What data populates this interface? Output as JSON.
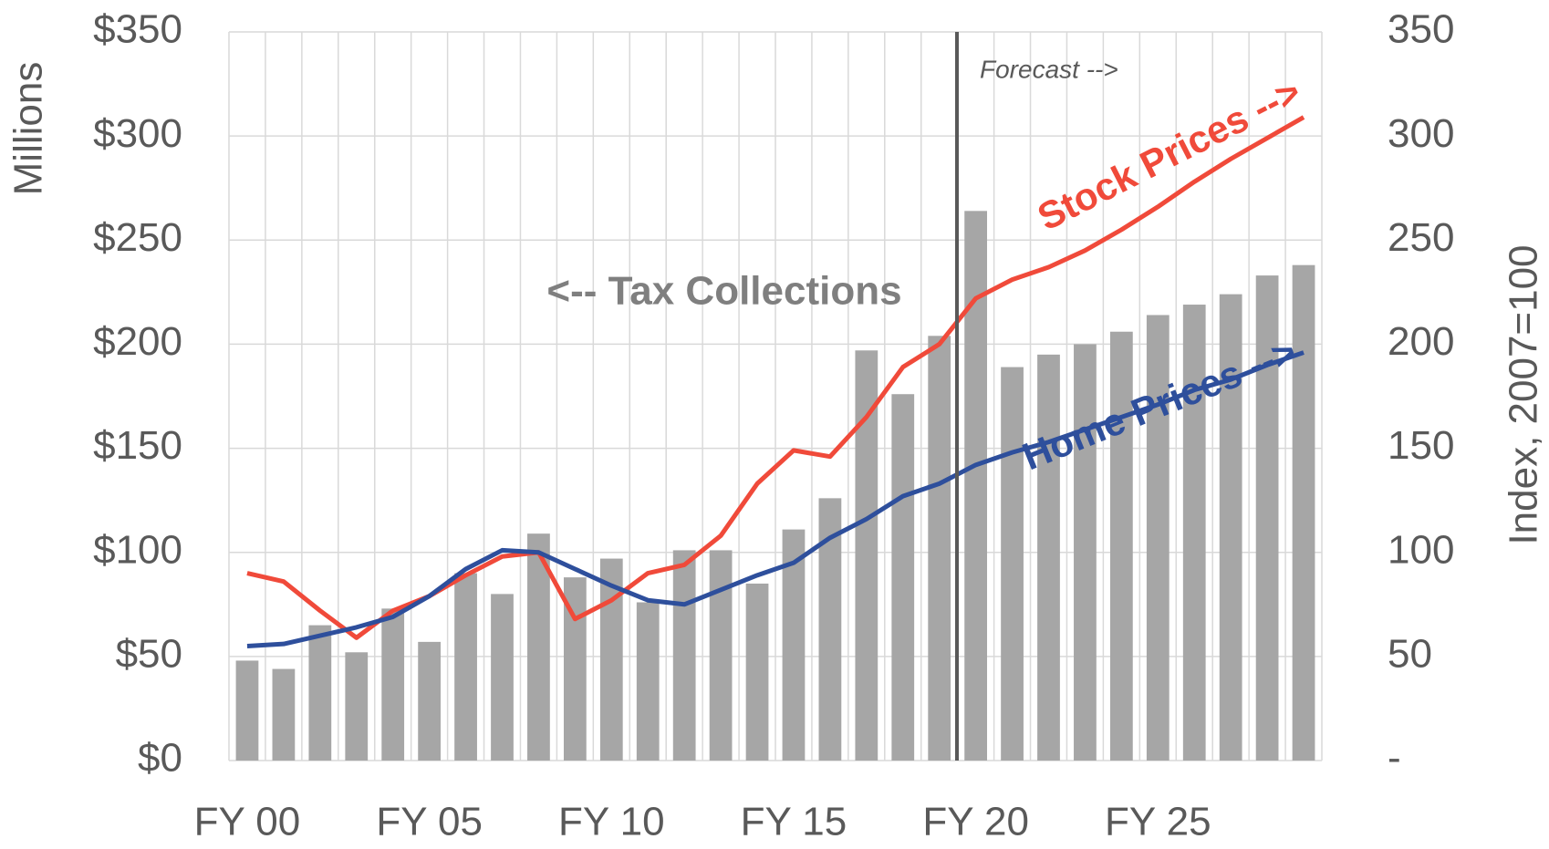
{
  "chart_data": {
    "type": "bar",
    "y_label": "Millions",
    "y2_label": "Index, 2007=100",
    "forecast_label": "Forecast -->",
    "categories": [
      "FY 00",
      null,
      null,
      null,
      null,
      "FY 05",
      null,
      null,
      null,
      null,
      "FY 10",
      null,
      null,
      null,
      null,
      "FY 15",
      null,
      null,
      null,
      null,
      "FY 20",
      null,
      null,
      null,
      null,
      "FY 25",
      null,
      null,
      null,
      null
    ],
    "series": [
      {
        "name": "<-- Tax Collections",
        "type": "bar",
        "color": "#a6a6a6",
        "values": [
          48,
          44,
          65,
          52,
          73,
          57,
          90,
          80,
          109,
          88,
          97,
          76,
          101,
          101,
          85,
          111,
          126,
          197,
          176,
          204,
          264,
          189,
          195,
          200,
          206,
          214,
          219,
          224,
          233,
          238
        ]
      },
      {
        "name": "Stock Prices -->",
        "type": "line",
        "axis": "y2",
        "color": "#f04a3a",
        "values": [
          90,
          86,
          72,
          59,
          72,
          79,
          89,
          98,
          100,
          68,
          77,
          90,
          94,
          108,
          133,
          149,
          146,
          165,
          189,
          200,
          222,
          231,
          237,
          245,
          255,
          266,
          278,
          289,
          299,
          309
        ]
      },
      {
        "name": "Home Prices -->",
        "type": "line",
        "axis": "y2",
        "color": "#2e4f9c",
        "values": [
          55,
          56,
          60,
          64,
          69,
          79,
          92,
          101,
          100,
          92,
          84,
          77,
          75,
          82,
          89,
          95,
          107,
          116,
          127,
          133,
          142,
          148,
          153,
          159,
          165,
          171,
          178,
          183,
          190,
          196
        ]
      }
    ],
    "ylim": [
      0,
      350
    ],
    "yticks": [
      {
        "value": 0,
        "label": "$0"
      },
      {
        "value": 50,
        "label": "$50"
      },
      {
        "value": 100,
        "label": "$100"
      },
      {
        "value": 150,
        "label": "$150"
      },
      {
        "value": 200,
        "label": "$200"
      },
      {
        "value": 250,
        "label": "$250"
      },
      {
        "value": 300,
        "label": "$300"
      },
      {
        "value": 350,
        "label": "$350"
      }
    ],
    "y2lim": [
      0,
      350
    ],
    "y2ticks": [
      {
        "value": 0,
        "label": "-"
      },
      50,
      100,
      150,
      200,
      250,
      300,
      350
    ],
    "grid": true
  }
}
